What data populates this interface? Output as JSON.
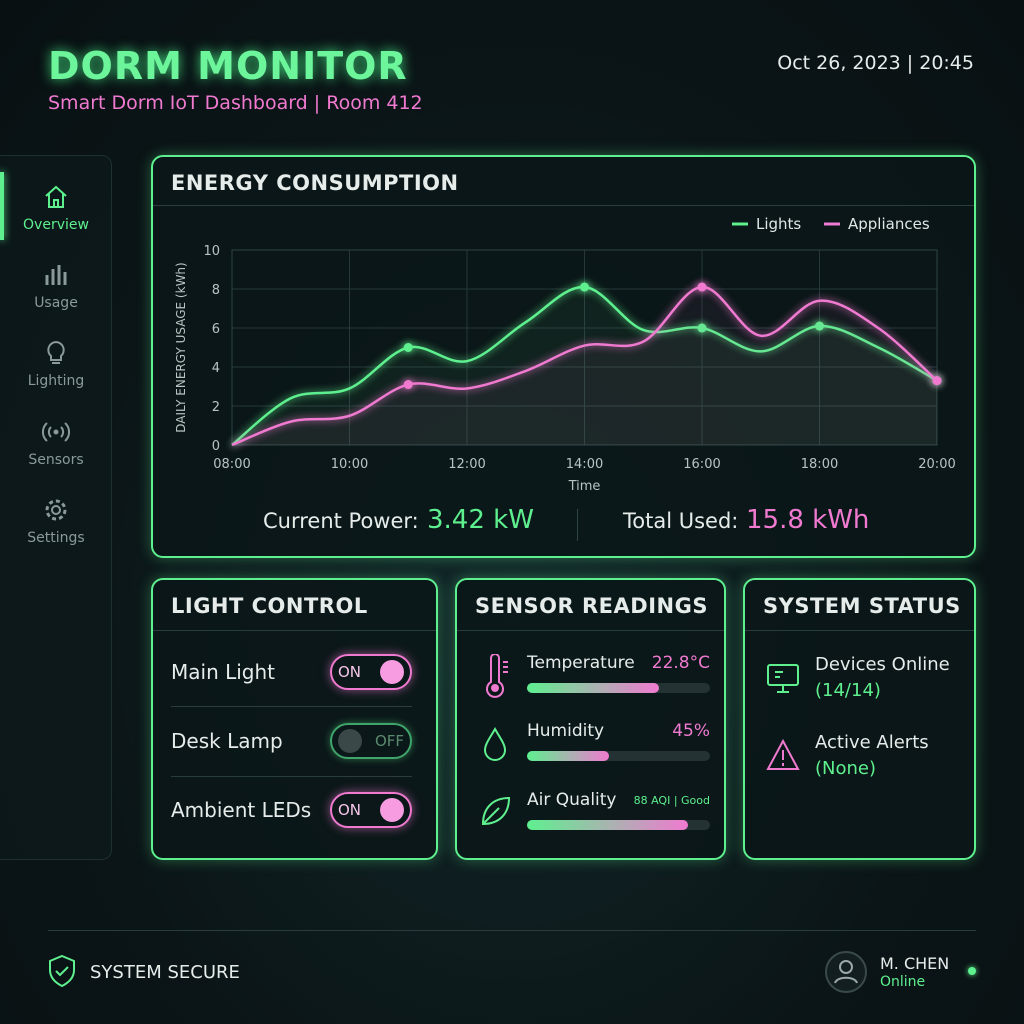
{
  "header": {
    "title": "DORM MONITOR",
    "subtitle": "Smart Dorm IoT Dashboard | Room 412",
    "datetime": "Oct 26, 2023 | 20:45"
  },
  "nav": [
    "Overview",
    "Usage",
    "Lighting",
    "Sensors",
    "Settings"
  ],
  "energy": {
    "title": "ENERGY CONSUMPTION",
    "current_label": "Current Power:",
    "current_value": "3.42 kW",
    "total_label": "Total Used:",
    "total_value": "15.8 kWh"
  },
  "chart_data": {
    "type": "line",
    "xlabel": "Time",
    "ylabel": "DAILY ENERGY USAGE (kWh)",
    "x": [
      8,
      9,
      10,
      11,
      12,
      13,
      14,
      15,
      16,
      17,
      18,
      19,
      20
    ],
    "series": [
      {
        "name": "Lights",
        "color": "#5ef08f",
        "values": [
          0,
          2.4,
          2.9,
          5,
          4.3,
          6.3,
          8.1,
          5.9,
          6,
          4.8,
          6.1,
          5,
          3.3
        ],
        "markers": [
          3,
          6,
          8,
          10,
          12
        ]
      },
      {
        "name": "Appliances",
        "color": "#f07ad0",
        "values": [
          0,
          1.2,
          1.5,
          3.1,
          2.9,
          3.8,
          5.1,
          5.3,
          8.1,
          5.6,
          7.4,
          6,
          3.3
        ],
        "markers": [
          3,
          8,
          12
        ]
      }
    ],
    "xlim": [
      8,
      20
    ],
    "ylim": [
      0,
      10
    ],
    "xticks": [
      {
        "value": 8,
        "label": "08:00"
      },
      {
        "value": 10,
        "label": "10:00"
      },
      {
        "value": 12,
        "label": "12:00"
      },
      {
        "value": 14,
        "label": "14:00"
      },
      {
        "value": 16,
        "label": "16:00"
      },
      {
        "value": 18,
        "label": "18:00"
      },
      {
        "value": 20,
        "label": "20:00"
      }
    ],
    "yticks": [
      0,
      2,
      4,
      6,
      8,
      10
    ],
    "grid": true,
    "legend": "top-right"
  },
  "light_control": {
    "title": "LIGHT CONTROL",
    "items": [
      {
        "name": "Main Light",
        "state": "ON"
      },
      {
        "name": "Desk Lamp",
        "state": "OFF"
      },
      {
        "name": "Ambient LEDs",
        "state": "ON"
      }
    ]
  },
  "sensors": {
    "title": "SENSOR READINGS",
    "items": [
      {
        "name": "Temperature",
        "value": "22.8°C"
      },
      {
        "name": "Humidity",
        "value": "45%"
      },
      {
        "name": "Air Quality",
        "value": "88 AQI | Good"
      }
    ]
  },
  "status": {
    "title": "SYSTEM STATUS",
    "items": [
      {
        "name": "Devices Online",
        "value": "(14/14)"
      },
      {
        "name": "Active Alerts",
        "value": "(None)"
      }
    ]
  },
  "footer": {
    "security": "SYSTEM SECURE",
    "user": "M. CHEN",
    "user_status": "Online"
  }
}
